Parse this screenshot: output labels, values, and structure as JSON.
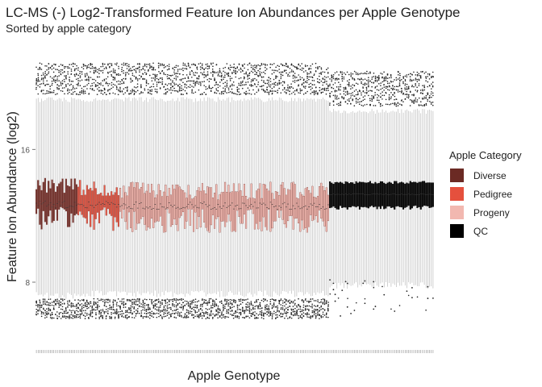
{
  "chart_data": {
    "type": "boxplot",
    "title": "LC-MS (-) Log2-Transformed Feature Ion Abundances per Apple Genotype",
    "subtitle": "Sorted by apple category",
    "xlabel": "Apple Genotype",
    "ylabel": "Feature Ion Abundance (log2)",
    "y_ticks": [
      8,
      16
    ],
    "ylim": [
      4.6,
      21.6
    ],
    "grid": false,
    "legend": {
      "title": "Apple Category",
      "position": "right",
      "entries": [
        {
          "name": "Diverse",
          "color": "#6b2a24"
        },
        {
          "name": "Pedigree",
          "color": "#e5503d"
        },
        {
          "name": "Progeny",
          "color": "#f2b8b0"
        },
        {
          "name": "QC",
          "color": "#000000"
        }
      ]
    },
    "groups": [
      {
        "category": "Diverse",
        "n_genotypes": 24,
        "q1": 11.9,
        "median": 12.7,
        "q3": 13.8,
        "whisker_low": 7.2,
        "whisker_high": 19.0,
        "outlier_low": [
          5.8,
          7.0
        ],
        "outlier_high": [
          19.3,
          21.2
        ]
      },
      {
        "category": "Pedigree",
        "n_genotypes": 24,
        "q1": 11.8,
        "median": 12.7,
        "q3": 13.7,
        "whisker_low": 7.3,
        "whisker_high": 19.0,
        "outlier_low": [
          5.8,
          7.0
        ],
        "outlier_high": [
          19.3,
          21.2
        ]
      },
      {
        "category": "Progeny",
        "n_genotypes": 120,
        "q1": 11.7,
        "median": 12.6,
        "q3": 13.5,
        "whisker_low": 7.3,
        "whisker_high": 19.0,
        "outlier_low": [
          5.8,
          7.0
        ],
        "outlier_high": [
          19.3,
          21.2
        ]
      },
      {
        "category": "QC",
        "n_genotypes": 60,
        "q1": 12.5,
        "median": 13.3,
        "q3": 14.0,
        "whisker_low": 7.8,
        "whisker_high": 18.3,
        "outlier_low": [
          6.3,
          7.8
        ],
        "outlier_high": [
          18.6,
          20.7
        ]
      }
    ]
  }
}
